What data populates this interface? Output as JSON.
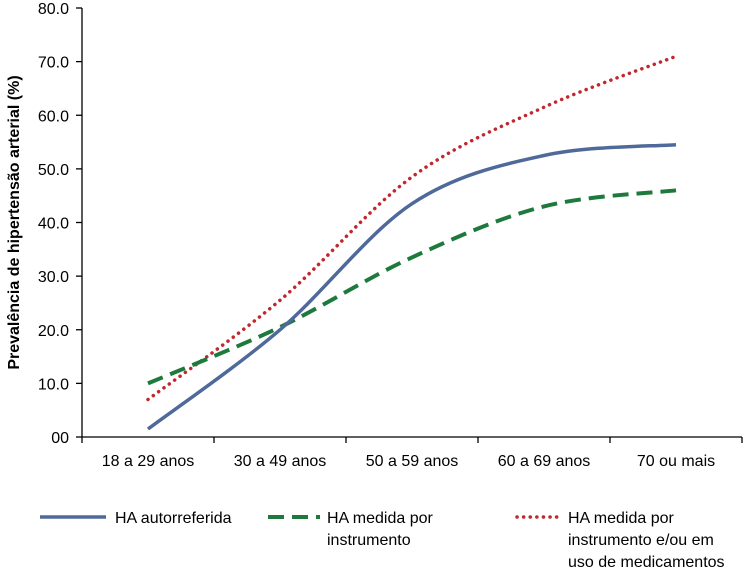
{
  "chart_data": {
    "type": "line",
    "title": "",
    "xlabel": "",
    "ylabel": "Prevalência de hipertensão arterial (%)",
    "categories": [
      "18 a 29 anos",
      "30 a 49 anos",
      "50 a 59 anos",
      "60 a 69 anos",
      "70 ou mais"
    ],
    "ylim": [
      0,
      80
    ],
    "yticks": [
      "00",
      "10.0",
      "20.0",
      "30.0",
      "40.0",
      "50.0",
      "60.0",
      "70.0",
      "80.0"
    ],
    "grid": false,
    "legend_position": "bottom",
    "series": [
      {
        "name": "HA autorreferida",
        "name_lines": [
          "HA autorreferida"
        ],
        "values": [
          1.5,
          20.0,
          43.5,
          52.5,
          54.5
        ],
        "color": "#4F6A9A",
        "style": "solid"
      },
      {
        "name": "HA medida por instrumento",
        "name_lines": [
          "HA medida por",
          "instrumento"
        ],
        "values": [
          10.0,
          20.5,
          33.5,
          43.0,
          46.0
        ],
        "color": "#1E7A3C",
        "style": "dashed"
      },
      {
        "name": "HA medida por instrumento e/ou em uso de medicamentos",
        "name_lines": [
          "HA medida por",
          "instrumento e/ou em",
          "uso de medicamentos"
        ],
        "values": [
          7.0,
          25.5,
          48.5,
          61.5,
          71.0
        ],
        "color": "#C0282D",
        "style": "dotted"
      }
    ]
  }
}
